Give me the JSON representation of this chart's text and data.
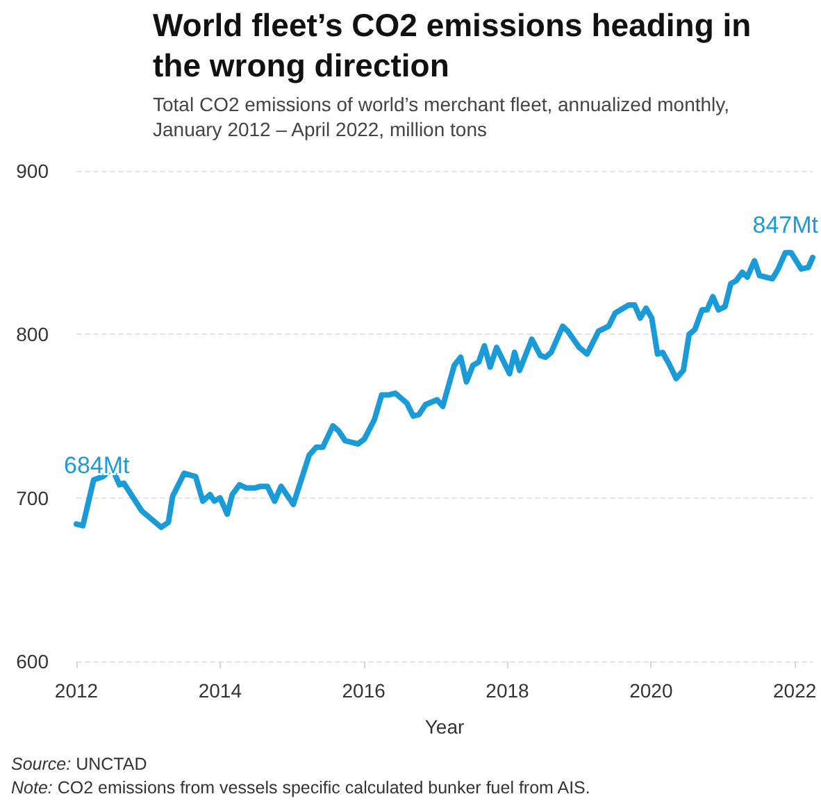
{
  "chart_data": {
    "type": "line",
    "title": "World fleet’s CO2 emissions heading in the wrong direction",
    "subtitle": "Total CO2 emissions of world’s merchant fleet, annualized monthly, January 2012 – April 2022, million tons",
    "xlabel": "Year",
    "x": [
      2012.0,
      2012.09,
      2012.24,
      2012.37,
      2012.5,
      2012.6,
      2012.66,
      2012.91,
      2013.18,
      2013.28,
      2013.34,
      2013.5,
      2013.66,
      2013.76,
      2013.86,
      2013.92,
      2014.0,
      2014.1,
      2014.17,
      2014.27,
      2014.37,
      2014.48,
      2014.56,
      2014.66,
      2014.76,
      2014.85,
      2015.02,
      2015.24,
      2015.34,
      2015.43,
      2015.57,
      2015.65,
      2015.74,
      2015.92,
      2016.01,
      2016.15,
      2016.25,
      2016.35,
      2016.44,
      2016.6,
      2016.69,
      2016.77,
      2016.86,
      2017.02,
      2017.1,
      2017.26,
      2017.35,
      2017.43,
      2017.52,
      2017.6,
      2017.68,
      2017.76,
      2017.85,
      2018.03,
      2018.1,
      2018.17,
      2018.34,
      2018.46,
      2018.53,
      2018.61,
      2018.77,
      2018.84,
      2019.0,
      2019.11,
      2019.27,
      2019.41,
      2019.5,
      2019.69,
      2019.77,
      2019.85,
      2019.93,
      2020.01,
      2020.09,
      2020.16,
      2020.25,
      2020.35,
      2020.45,
      2020.53,
      2020.61,
      2020.71,
      2020.78,
      2020.86,
      2020.94,
      2021.03,
      2021.11,
      2021.19,
      2021.27,
      2021.34,
      2021.44,
      2021.51,
      2021.69,
      2021.77,
      2021.87,
      2021.95,
      2022.09,
      2022.19,
      2022.25
    ],
    "series": [
      {
        "color": "#1a9bd7",
        "values": [
          684,
          683,
          711,
          713,
          718,
          708,
          709,
          692,
          682,
          685,
          701,
          715,
          713,
          698,
          702,
          698,
          700,
          690,
          702,
          708,
          706,
          706,
          707,
          707,
          698,
          707,
          696,
          726,
          731,
          731,
          744,
          741,
          735,
          733,
          736,
          748,
          763,
          763,
          764,
          758,
          750,
          751,
          757,
          760,
          756,
          781,
          786,
          771,
          781,
          783,
          793,
          780,
          792,
          776,
          789,
          778,
          797,
          787,
          786,
          789,
          805,
          802,
          792,
          788,
          802,
          805,
          813,
          818,
          818,
          810,
          816,
          810,
          788,
          789,
          782,
          773,
          778,
          800,
          803,
          815,
          815,
          823,
          815,
          817,
          831,
          833,
          838,
          835,
          845,
          836,
          834,
          840,
          850,
          850,
          840,
          841,
          847
        ]
      }
    ],
    "xlim": [
      2012,
      2022.25
    ],
    "xticks": [
      2012,
      2014,
      2016,
      2018,
      2020,
      2022
    ],
    "ylim": [
      600,
      900
    ],
    "yticks": [
      600,
      700,
      800,
      900
    ],
    "grid": "y",
    "marker": "none",
    "line_style": "solid",
    "annotations": [
      {
        "text": "684Mt",
        "x": 2012.0,
        "y": 684
      },
      {
        "text": "847Mt",
        "x": 2022.25,
        "y": 847
      },
      "Source: UNCTAD",
      "Note: CO2 emissions from vessels specific calculated bunker fuel from AIS."
    ]
  }
}
